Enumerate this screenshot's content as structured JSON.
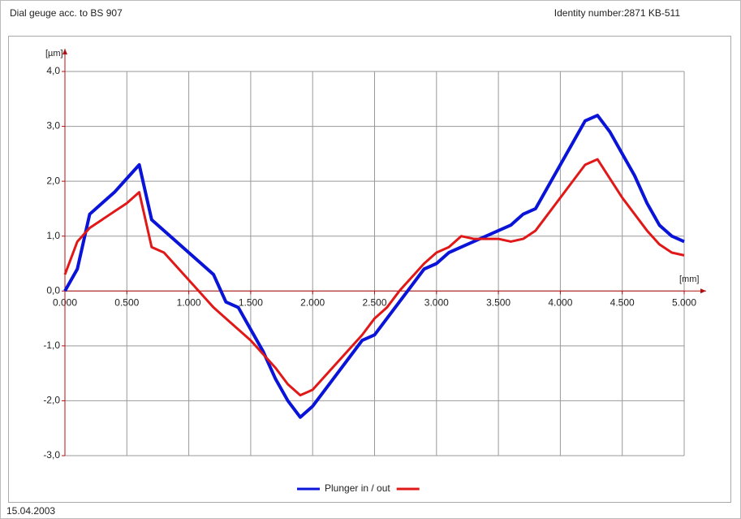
{
  "header": {
    "title": "Dial geuge acc. to BS 907",
    "identity": "Identity number:2871 KB-511"
  },
  "footer": {
    "date": "15.04.2003"
  },
  "chart_data": {
    "type": "line",
    "ylabel": "[µm]",
    "xlabel": "[mm]",
    "x": [
      0,
      0.1,
      0.2,
      0.3,
      0.4,
      0.5,
      0.6,
      0.7,
      0.8,
      0.9,
      1,
      1.1,
      1.2,
      1.3,
      1.4,
      1.5,
      1.6,
      1.7,
      1.8,
      1.9,
      2,
      2.1,
      2.2,
      2.3,
      2.4,
      2.5,
      2.6,
      2.7,
      2.8,
      2.9,
      3,
      3.1,
      3.2,
      3.3,
      3.4,
      3.5,
      3.6,
      3.7,
      3.8,
      3.9,
      4,
      4.1,
      4.2,
      4.3,
      4.4,
      4.5,
      4.6,
      4.7,
      4.8,
      4.9,
      5
    ],
    "series": [
      {
        "name": "Plunger in / out",
        "color": "#0a14d8",
        "values": [
          0,
          0.4,
          1.4,
          1.6,
          1.8,
          2.05,
          2.3,
          1.3,
          1.1,
          0.9,
          0.7,
          0.5,
          0.3,
          -0.2,
          -0.3,
          -0.7,
          -1.1,
          -1.6,
          -2,
          -2.3,
          -2.1,
          -1.8,
          -1.5,
          -1.2,
          -0.9,
          -0.8,
          -0.5,
          -0.2,
          0.1,
          0.4,
          0.5,
          0.7,
          0.8,
          0.9,
          1,
          1.1,
          1.2,
          1.4,
          1.5,
          1.9,
          2.3,
          2.7,
          3.1,
          3.2,
          2.9,
          2.5,
          2.1,
          1.6,
          1.2,
          1,
          0.9
        ]
      },
      {
        "color": "#e01818",
        "values": [
          0.3,
          0.9,
          1.15,
          1.3,
          1.45,
          1.6,
          1.8,
          0.8,
          0.7,
          0.45,
          0.2,
          -0.05,
          -0.3,
          -0.5,
          -0.7,
          -0.9,
          -1.15,
          -1.4,
          -1.7,
          -1.9,
          -1.8,
          -1.55,
          -1.3,
          -1.05,
          -0.8,
          -0.5,
          -0.3,
          0,
          0.25,
          0.5,
          0.7,
          0.8,
          1,
          0.95,
          0.95,
          0.95,
          0.9,
          0.95,
          1.1,
          1.4,
          1.7,
          2,
          2.3,
          2.4,
          2.05,
          1.7,
          1.4,
          1.1,
          0.85,
          0.7,
          0.65
        ]
      }
    ],
    "xlim": [
      0,
      5
    ],
    "ylim": [
      -3,
      4
    ],
    "xticks": [
      {
        "value": 0,
        "label": "0.000"
      },
      {
        "value": 0.5,
        "label": "0.500"
      },
      {
        "value": 1,
        "label": "1.000"
      },
      {
        "value": 1.5,
        "label": "1.500"
      },
      {
        "value": 2,
        "label": "2.000"
      },
      {
        "value": 2.5,
        "label": "2.500"
      },
      {
        "value": 3,
        "label": "3.000"
      },
      {
        "value": 3.5,
        "label": "3.500"
      },
      {
        "value": 4,
        "label": "4.000"
      },
      {
        "value": 4.5,
        "label": "4.500"
      },
      {
        "value": 5,
        "label": "5.000"
      }
    ],
    "yticks": [
      {
        "value": 4,
        "label": "4,0"
      },
      {
        "value": 3,
        "label": "3,0"
      },
      {
        "value": 2,
        "label": "2,0"
      },
      {
        "value": 1,
        "label": "1,0"
      },
      {
        "value": 0,
        "label": "0,0"
      },
      {
        "value": -1,
        "label": "-1,0"
      },
      {
        "value": -2,
        "label": "-2,0"
      },
      {
        "value": -3,
        "label": "-3,0"
      }
    ],
    "grid": true,
    "axis_color": "#b01010"
  }
}
